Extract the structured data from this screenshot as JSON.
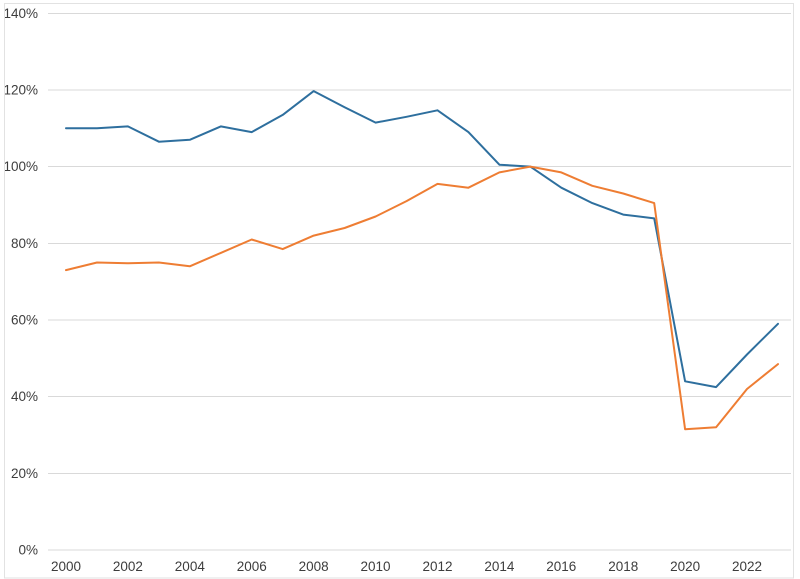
{
  "chart_data": {
    "type": "line",
    "title": "",
    "xlabel": "",
    "ylabel": "",
    "grid": true,
    "legend": "none",
    "x": [
      2000,
      2001,
      2002,
      2003,
      2004,
      2005,
      2006,
      2007,
      2008,
      2009,
      2010,
      2011,
      2012,
      2013,
      2014,
      2015,
      2016,
      2017,
      2018,
      2019,
      2020,
      2021,
      2022,
      2023
    ],
    "series": [
      {
        "name": "series-blue",
        "color": "#2e6f9e",
        "values": [
          110,
          110,
          110.5,
          106.5,
          107,
          110.5,
          109,
          113.5,
          119.7,
          115.5,
          111.5,
          113,
          114.7,
          109,
          100.5,
          100,
          94.5,
          90.5,
          87.5,
          86.5,
          44,
          42.5,
          51,
          59
        ]
      },
      {
        "name": "series-orange",
        "color": "#ee7d33",
        "values": [
          73,
          75,
          74.8,
          75,
          74,
          77.5,
          81,
          78.5,
          82,
          84,
          87,
          91,
          95.5,
          94.5,
          98.5,
          100,
          98.5,
          95,
          93,
          90.5,
          31.5,
          32,
          42,
          48.5
        ]
      }
    ],
    "ylim": [
      0,
      140
    ],
    "y_ticks": {
      "values": [
        0,
        20,
        40,
        60,
        80,
        100,
        120,
        140
      ],
      "labels": [
        "0%",
        "20%",
        "40%",
        "60%",
        "80%",
        "100%",
        "120%",
        "140%"
      ]
    },
    "x_ticks": {
      "values": [
        2000,
        2002,
        2004,
        2006,
        2008,
        2010,
        2012,
        2014,
        2016,
        2018,
        2020,
        2022
      ],
      "labels": [
        "2000",
        "2002",
        "2004",
        "2006",
        "2008",
        "2010",
        "2012",
        "2014",
        "2016",
        "2018",
        "2020",
        "2022"
      ]
    },
    "gridline_color": "#d9d9d9",
    "border_color": "#e2e2e2",
    "label_color": "#3d3d3d"
  }
}
